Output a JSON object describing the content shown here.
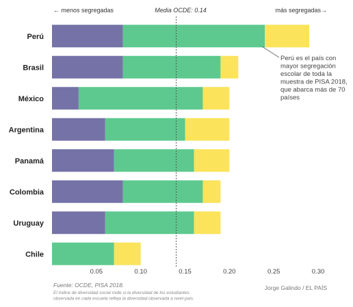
{
  "chart_data": {
    "type": "bar",
    "stacked": true,
    "orientation": "horizontal",
    "categories": [
      "Perú",
      "Brasil",
      "México",
      "Argentina",
      "Panamá",
      "Colombia",
      "Uruguay",
      "Chile"
    ],
    "series": [
      {
        "values": [
          0.08,
          0.08,
          0.03,
          0.06,
          0.07,
          0.08,
          0.06,
          0.0
        ]
      },
      {
        "values": [
          0.16,
          0.11,
          0.14,
          0.09,
          0.09,
          0.09,
          0.1,
          0.07
        ]
      },
      {
        "values": [
          0.05,
          0.02,
          0.03,
          0.05,
          0.04,
          0.02,
          0.03,
          0.03
        ]
      }
    ],
    "xlim": [
      0,
      0.31
    ],
    "xticks": [
      "0.05",
      "0.10",
      "0.15",
      "0.20",
      "0.25",
      "0.30"
    ],
    "xtick_values": [
      0.05,
      0.1,
      0.15,
      0.2,
      0.25,
      0.3
    ],
    "reference_line": {
      "value": 0.14,
      "label": "Media OCDE: 0.14"
    },
    "direction_left": "← menos segregadas",
    "direction_right": "más segregadas→",
    "annotation": [
      "Perú es el país con",
      "mayor segregación",
      "escolar de toda la",
      "muestra de PISA 2018,",
      "que abarca más de 70",
      "países"
    ],
    "source": "Fuente: OCDE, PISA 2018.",
    "note": [
      "El índice de diversidad social mide si la diversidad de los estudiantes",
      "observada en cada escuela refleja la diversidad observada a nivel país."
    ],
    "credit": "Jorge Galindo / EL PAÍS",
    "grid": false,
    "colors": [
      "#7472a6",
      "#5dc98f",
      "#fbe35b"
    ]
  }
}
